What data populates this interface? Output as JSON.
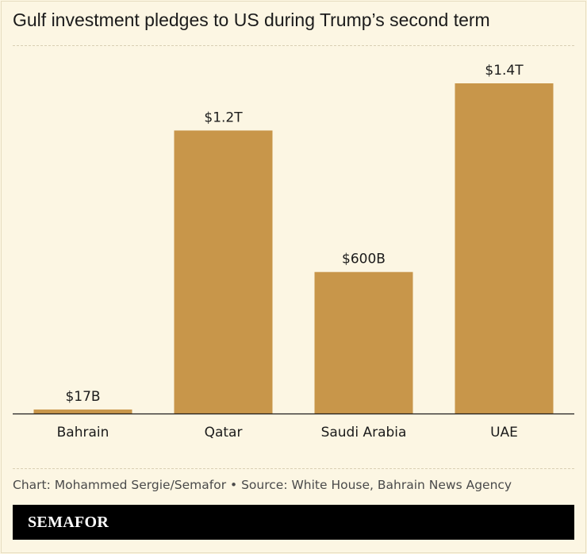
{
  "header": {
    "title": "Gulf investment pledges to US during Trump’s second term"
  },
  "chart_data": {
    "type": "bar",
    "title": "Gulf investment pledges to US during Trump’s second term",
    "xlabel": "",
    "ylabel": "",
    "unit": "USD",
    "categories": [
      "Bahrain",
      "Qatar",
      "Saudi Arabia",
      "UAE"
    ],
    "values": [
      17,
      1200,
      600,
      1400
    ],
    "value_unit": "billions",
    "data_labels": [
      "$17B",
      "$1.2T",
      "$600B",
      "$1.4T"
    ],
    "ylim": [
      0,
      1400
    ],
    "grid": false,
    "legend": "none",
    "bar_color": "#c8964a",
    "axis_color": "#1b1b1b"
  },
  "footer": {
    "source": "Chart: Mohammed Sergie/Semafor • Source: White House, Bahrain News Agency",
    "brand": "SEMAFOR"
  },
  "colors": {
    "background": "#fcf6e3",
    "bar": "#c8964a",
    "brand_bar": "#000000",
    "brand_text": "#ffffff"
  }
}
